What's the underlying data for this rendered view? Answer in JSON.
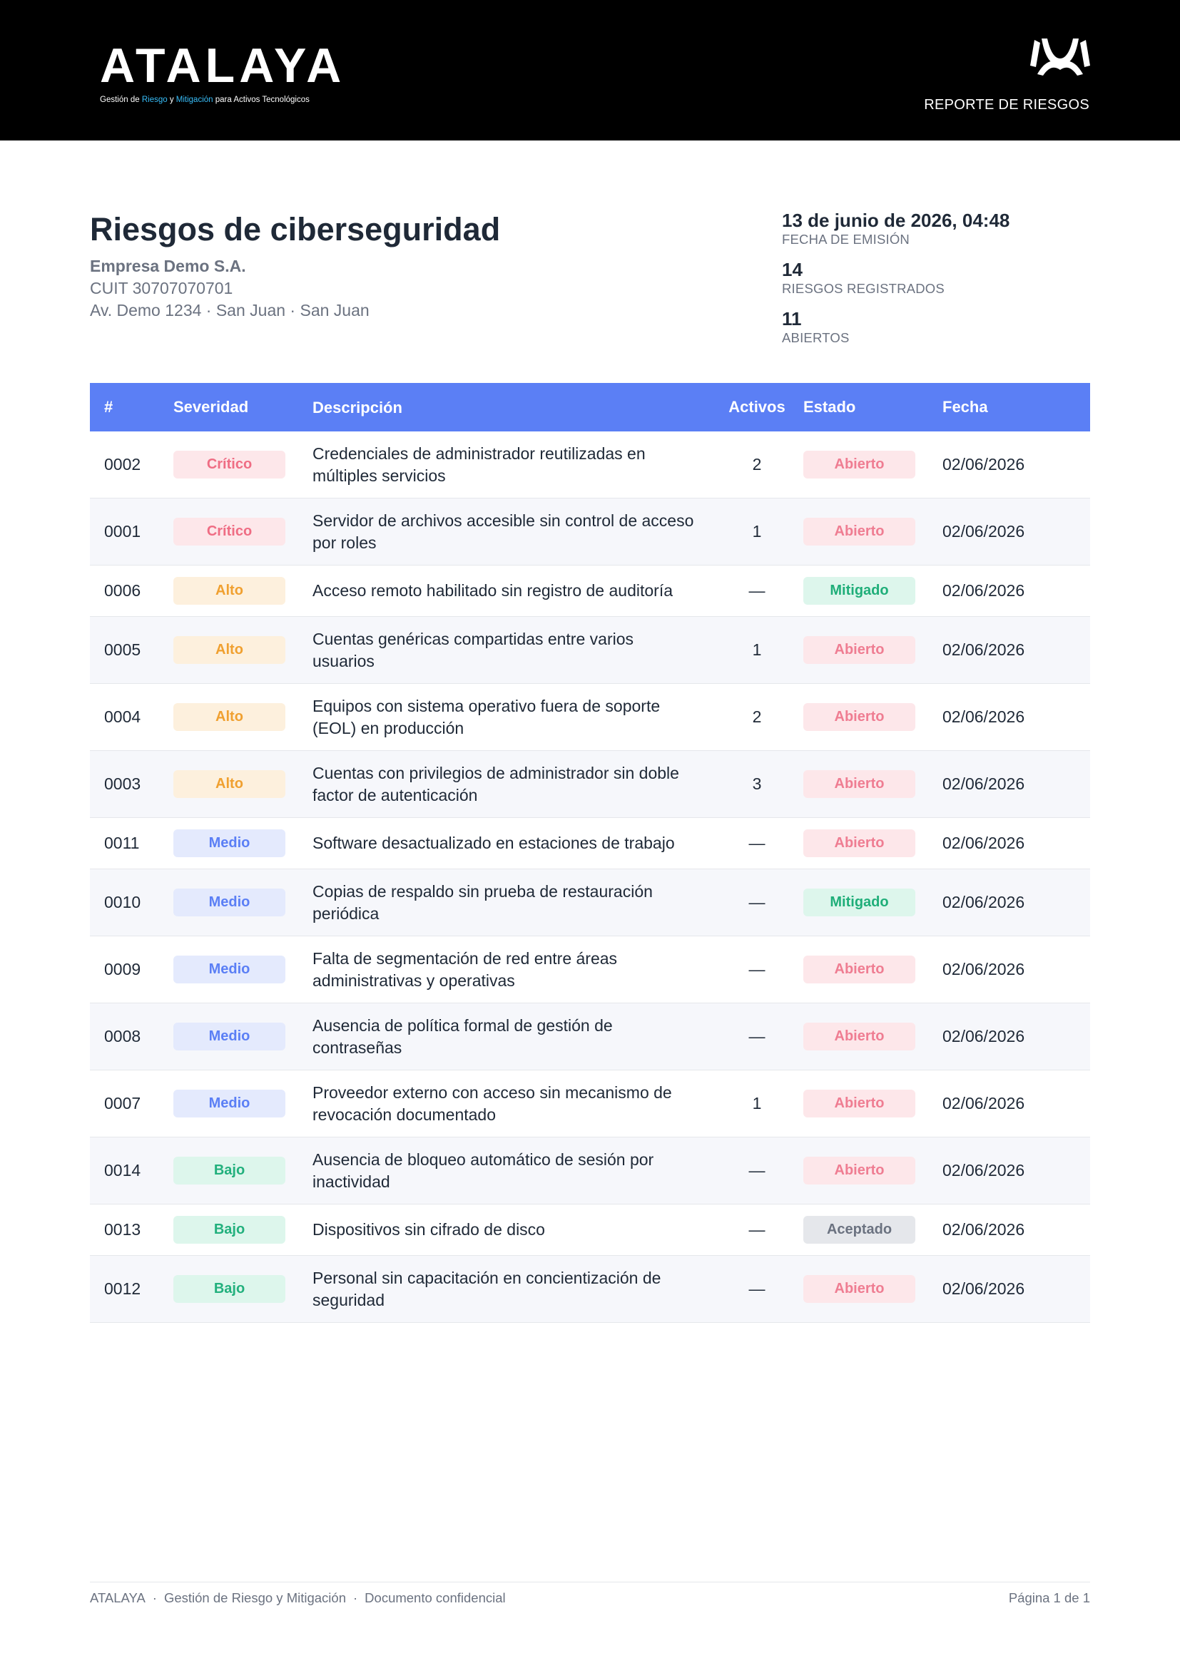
{
  "header": {
    "logo_text": "ATALAYA",
    "tagline_parts": [
      "Gestión de ",
      "Riesgo",
      " y ",
      "Mitigación",
      " para Activos Tecnológicos"
    ],
    "report_title": "REPORTE DE RIESGOS",
    "brand_mark_icon": "atalaya-mark-icon"
  },
  "document": {
    "title": "Riesgos de ciberseguridad",
    "company": "Empresa Demo S.A.",
    "cuit": "CUIT 30707070701",
    "address": "Av. Demo 1234 · San Juan · San Juan"
  },
  "meta": [
    {
      "value": "13 de junio de 2026, 04:48",
      "label": "FECHA DE EMISIÓN"
    },
    {
      "value": "14",
      "label": "RIESGOS REGISTRADOS"
    },
    {
      "value": "11",
      "label": "ABIERTOS"
    }
  ],
  "table": {
    "headers": {
      "num": "#",
      "severity": "Severidad",
      "description": "Descripción",
      "assets": "Activos",
      "status": "Estado",
      "date": "Fecha"
    },
    "rows": [
      {
        "num": "0002",
        "severity": "Crítico",
        "sev_class": "critico",
        "description": "Credenciales de administrador reutilizadas en múltiples servicios",
        "assets": "2",
        "status": "Abierto",
        "status_class": "abierto",
        "date": "02/06/2026"
      },
      {
        "num": "0001",
        "severity": "Crítico",
        "sev_class": "critico",
        "description": "Servidor de archivos accesible sin control de acceso por roles",
        "assets": "1",
        "status": "Abierto",
        "status_class": "abierto",
        "date": "02/06/2026"
      },
      {
        "num": "0006",
        "severity": "Alto",
        "sev_class": "alto",
        "description": "Acceso remoto habilitado sin registro de auditoría",
        "assets": "—",
        "status": "Mitigado",
        "status_class": "mitigado",
        "date": "02/06/2026"
      },
      {
        "num": "0005",
        "severity": "Alto",
        "sev_class": "alto",
        "description": "Cuentas genéricas compartidas entre varios usuarios",
        "assets": "1",
        "status": "Abierto",
        "status_class": "abierto",
        "date": "02/06/2026"
      },
      {
        "num": "0004",
        "severity": "Alto",
        "sev_class": "alto",
        "description": "Equipos con sistema operativo fuera de soporte (EOL) en producción",
        "assets": "2",
        "status": "Abierto",
        "status_class": "abierto",
        "date": "02/06/2026"
      },
      {
        "num": "0003",
        "severity": "Alto",
        "sev_class": "alto",
        "description": "Cuentas con privilegios de administrador sin doble factor de autenticación",
        "assets": "3",
        "status": "Abierto",
        "status_class": "abierto",
        "date": "02/06/2026"
      },
      {
        "num": "0011",
        "severity": "Medio",
        "sev_class": "medio",
        "description": "Software desactualizado en estaciones de trabajo",
        "assets": "—",
        "status": "Abierto",
        "status_class": "abierto",
        "date": "02/06/2026"
      },
      {
        "num": "0010",
        "severity": "Medio",
        "sev_class": "medio",
        "description": "Copias de respaldo sin prueba de restauración periódica",
        "assets": "—",
        "status": "Mitigado",
        "status_class": "mitigado",
        "date": "02/06/2026"
      },
      {
        "num": "0009",
        "severity": "Medio",
        "sev_class": "medio",
        "description": "Falta de segmentación de red entre áreas administrativas y operativas",
        "assets": "—",
        "status": "Abierto",
        "status_class": "abierto",
        "date": "02/06/2026"
      },
      {
        "num": "0008",
        "severity": "Medio",
        "sev_class": "medio",
        "description": "Ausencia de política formal de gestión de contraseñas",
        "assets": "—",
        "status": "Abierto",
        "status_class": "abierto",
        "date": "02/06/2026"
      },
      {
        "num": "0007",
        "severity": "Medio",
        "sev_class": "medio",
        "description": "Proveedor externo con acceso sin mecanismo de revocación documentado",
        "assets": "1",
        "status": "Abierto",
        "status_class": "abierto",
        "date": "02/06/2026"
      },
      {
        "num": "0014",
        "severity": "Bajo",
        "sev_class": "bajo",
        "description": "Ausencia de bloqueo automático de sesión por inactividad",
        "assets": "—",
        "status": "Abierto",
        "status_class": "abierto",
        "date": "02/06/2026"
      },
      {
        "num": "0013",
        "severity": "Bajo",
        "sev_class": "bajo",
        "description": "Dispositivos sin cifrado de disco",
        "assets": "—",
        "status": "Aceptado",
        "status_class": "aceptado",
        "date": "02/06/2026"
      },
      {
        "num": "0012",
        "severity": "Bajo",
        "sev_class": "bajo",
        "description": "Personal sin capacitación en concientización de seguridad",
        "assets": "—",
        "status": "Abierto",
        "status_class": "abierto",
        "date": "02/06/2026"
      }
    ]
  },
  "footer": {
    "parts": [
      "ATALAYA",
      "Gestión de Riesgo y Mitigación",
      "Documento confidencial"
    ],
    "separator": "·",
    "page": "Página 1 de 1"
  }
}
